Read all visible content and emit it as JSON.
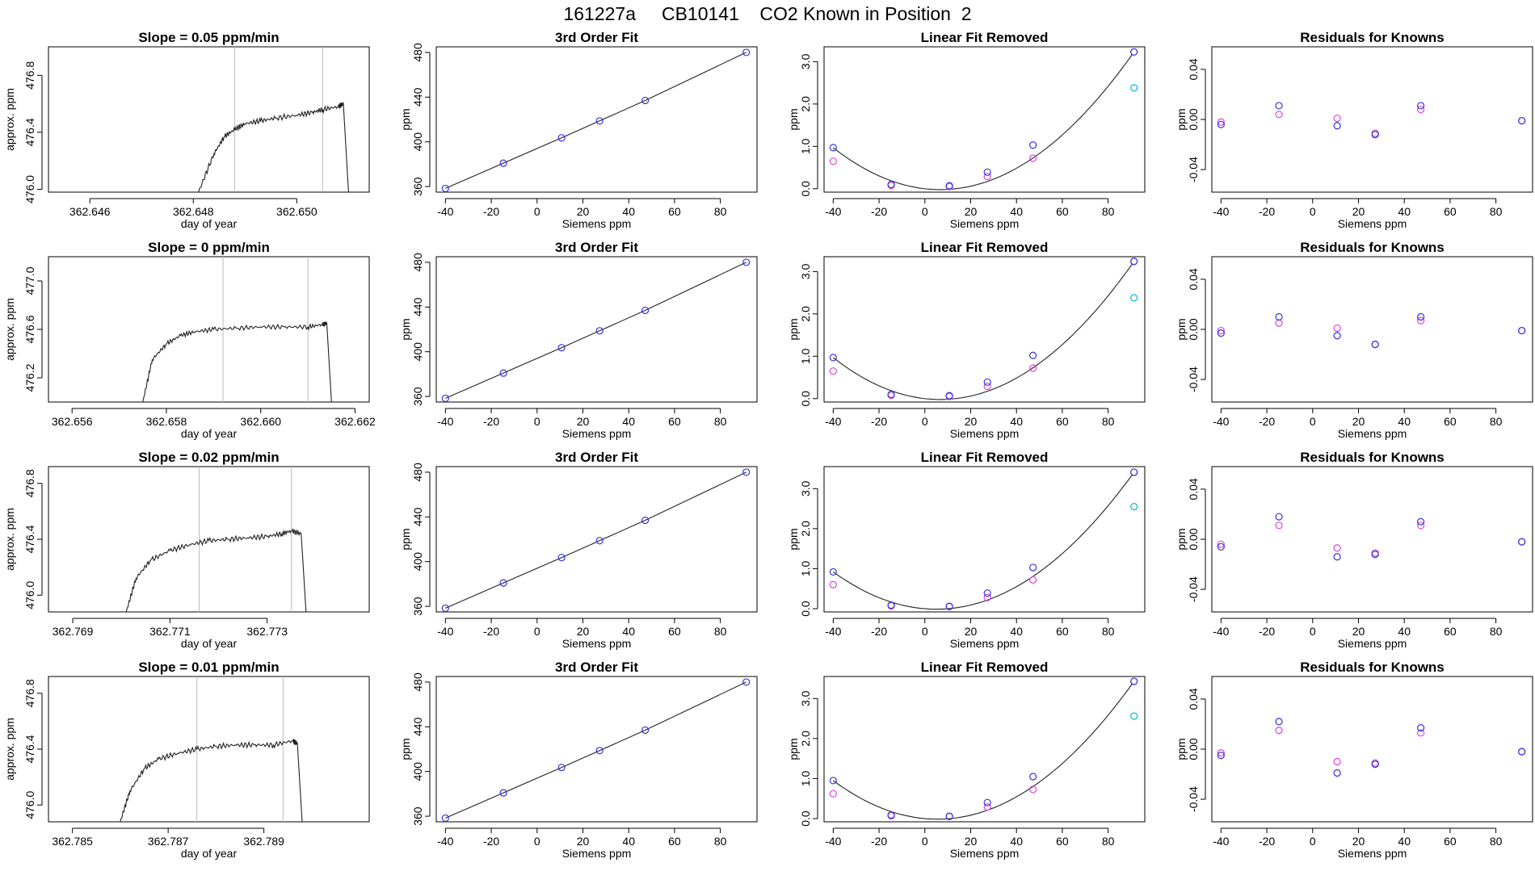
{
  "page": {
    "title": "161227a     CB10141    CO2 Known in Position  2"
  },
  "chart_data": [
    {
      "type": "line",
      "panel": "time",
      "row": 1,
      "title": "Slope =  0.05  ppm/min",
      "xlabel": "day of year",
      "ylabel": "approx. ppm",
      "xlim": [
        362.6452,
        362.6514
      ],
      "ylim": [
        475.98,
        477.0
      ],
      "xticks": [
        362.646,
        362.648,
        362.65
      ],
      "xtick_labels": [
        "362.646",
        "362.648",
        "362.650"
      ],
      "yticks": [
        476.0,
        476.4,
        476.8
      ],
      "ytick_labels": [
        "476.0",
        "476.4",
        "476.8"
      ],
      "vlines": [
        362.6488,
        362.6505
      ],
      "x": [
        362.6481,
        362.6484,
        362.6486,
        362.6488,
        362.649,
        362.6493,
        362.6496,
        362.65,
        362.6503,
        362.6505,
        362.6508,
        362.6509,
        362.651
      ],
      "y": [
        475.98,
        476.25,
        476.37,
        476.42,
        476.46,
        476.48,
        476.5,
        476.52,
        476.54,
        476.56,
        476.58,
        476.6,
        475.98
      ]
    },
    {
      "type": "line",
      "panel": "fit",
      "row": 1,
      "title": "3rd Order Fit",
      "xlabel": "Siemens ppm",
      "ylabel": "ppm",
      "xlim": [
        -44,
        96
      ],
      "ylim": [
        355,
        485
      ],
      "xticks": [
        -40,
        -20,
        0,
        20,
        40,
        60,
        80
      ],
      "xtick_labels": [
        "-40",
        "-20",
        "0",
        "20",
        "40",
        "60",
        "80"
      ],
      "yticks": [
        360,
        400,
        440,
        480
      ],
      "ytick_labels": [
        "360",
        "400",
        "440",
        "480"
      ],
      "x": [
        -40,
        -14.7,
        10.7,
        27.3,
        47.2,
        91.3
      ],
      "y": [
        358.3,
        380.9,
        403.6,
        418.7,
        437.0,
        480.0
      ]
    },
    {
      "type": "line",
      "panel": "linear",
      "row": 1,
      "title": "Linear Fit Removed",
      "xlabel": "Siemens ppm",
      "ylabel": "ppm",
      "xlim": [
        -44,
        96
      ],
      "ylim": [
        -0.08,
        3.35
      ],
      "xticks": [
        -40,
        -20,
        0,
        20,
        40,
        60,
        80
      ],
      "xtick_labels": [
        "-40",
        "-20",
        "0",
        "20",
        "40",
        "60",
        "80"
      ],
      "yticks": [
        0,
        1,
        2,
        3
      ],
      "ytick_labels": [
        "0.0",
        "1.0",
        "2.0",
        "3.0"
      ],
      "x": [
        -40,
        -14.7,
        10.7,
        27.3,
        47.2,
        91.3
      ],
      "y_blue": [
        0.97,
        0.1,
        0.07,
        0.39,
        1.03,
        3.23
      ],
      "y_magenta": [
        0.65,
        0.08,
        0.05,
        0.29,
        0.72,
        3.23
      ],
      "cyan_point": [
        91.3,
        2.38
      ]
    },
    {
      "type": "scatter",
      "panel": "resid",
      "row": 1,
      "title": "Residuals for Knowns",
      "xlabel": "Siemens ppm",
      "ylabel": "ppm",
      "xlim": [
        -44,
        96
      ],
      "ylim": [
        -0.058,
        0.058
      ],
      "xticks": [
        -40,
        -20,
        0,
        20,
        40,
        60,
        80
      ],
      "xtick_labels": [
        "-40",
        "-20",
        "0",
        "20",
        "40",
        "60",
        "80"
      ],
      "yticks": [
        -0.04,
        0,
        0.04
      ],
      "ytick_labels": [
        "-0.04",
        "0.00",
        "0.04"
      ],
      "x": [
        -40,
        -14.7,
        10.7,
        27.3,
        47.2,
        91.3
      ],
      "y_blue": [
        -0.004,
        0.011,
        -0.005,
        -0.012,
        0.011,
        -0.001
      ],
      "y_magenta": [
        -0.002,
        0.004,
        0.001,
        -0.011,
        0.008,
        -0.001
      ]
    },
    {
      "type": "line",
      "panel": "time",
      "row": 2,
      "title": "Slope =  0  ppm/min",
      "xlabel": "day of year",
      "ylabel": "approx. ppm",
      "xlim": [
        362.6555,
        362.6623
      ],
      "ylim": [
        476.0,
        477.2
      ],
      "xticks": [
        362.656,
        362.658,
        362.66,
        362.662
      ],
      "xtick_labels": [
        "362.656",
        "362.658",
        "362.660",
        "362.662"
      ],
      "yticks": [
        476.2,
        476.6,
        477.0
      ],
      "ytick_labels": [
        "476.2",
        "476.6",
        "477.0"
      ],
      "vlines": [
        362.6592,
        362.661
      ],
      "x": [
        362.6575,
        362.6577,
        362.658,
        362.6583,
        362.6586,
        362.659,
        362.6595,
        362.66,
        362.6605,
        362.661,
        362.6613,
        362.6614,
        362.6615
      ],
      "y": [
        476.0,
        476.35,
        476.48,
        476.55,
        476.58,
        476.6,
        476.61,
        476.62,
        476.62,
        476.62,
        476.64,
        476.65,
        476.0
      ]
    },
    {
      "type": "line",
      "panel": "fit",
      "row": 2,
      "title": "3rd Order Fit",
      "xlabel": "Siemens ppm",
      "ylabel": "ppm",
      "xlim": [
        -44,
        96
      ],
      "ylim": [
        355,
        485
      ],
      "xticks": [
        -40,
        -20,
        0,
        20,
        40,
        60,
        80
      ],
      "xtick_labels": [
        "-40",
        "-20",
        "0",
        "20",
        "40",
        "60",
        "80"
      ],
      "yticks": [
        360,
        400,
        440,
        480
      ],
      "ytick_labels": [
        "360",
        "400",
        "440",
        "480"
      ],
      "x": [
        -40,
        -14.7,
        10.7,
        27.3,
        47.2,
        91.3
      ],
      "y": [
        358.3,
        380.9,
        403.6,
        418.7,
        437.0,
        480.0
      ]
    },
    {
      "type": "line",
      "panel": "linear",
      "row": 2,
      "title": "Linear Fit Removed",
      "xlabel": "Siemens ppm",
      "ylabel": "ppm",
      "xlim": [
        -44,
        96
      ],
      "ylim": [
        -0.08,
        3.35
      ],
      "xticks": [
        -40,
        -20,
        0,
        20,
        40,
        60,
        80
      ],
      "xtick_labels": [
        "-40",
        "-20",
        "0",
        "20",
        "40",
        "60",
        "80"
      ],
      "yticks": [
        0,
        1,
        2,
        3
      ],
      "ytick_labels": [
        "0.0",
        "1.0",
        "2.0",
        "3.0"
      ],
      "x": [
        -40,
        -14.7,
        10.7,
        27.3,
        47.2,
        91.3
      ],
      "y_blue": [
        0.97,
        0.1,
        0.07,
        0.39,
        1.02,
        3.24
      ],
      "y_magenta": [
        0.65,
        0.08,
        0.05,
        0.29,
        0.72,
        3.24
      ],
      "cyan_point": [
        91.3,
        2.38
      ]
    },
    {
      "type": "scatter",
      "panel": "resid",
      "row": 2,
      "title": "Residuals for Knowns",
      "xlabel": "Siemens ppm",
      "ylabel": "ppm",
      "xlim": [
        -44,
        96
      ],
      "ylim": [
        -0.058,
        0.058
      ],
      "xticks": [
        -40,
        -20,
        0,
        20,
        40,
        60,
        80
      ],
      "xtick_labels": [
        "-40",
        "-20",
        "0",
        "20",
        "40",
        "60",
        "80"
      ],
      "yticks": [
        -0.04,
        0,
        0.04
      ],
      "ytick_labels": [
        "-0.04",
        "0.00",
        "0.04"
      ],
      "x": [
        -40,
        -14.7,
        10.7,
        27.3,
        47.2,
        91.3
      ],
      "y_blue": [
        -0.003,
        0.01,
        -0.005,
        -0.012,
        0.01,
        -0.001
      ],
      "y_magenta": [
        -0.001,
        0.005,
        0.001,
        -0.012,
        0.007,
        -0.001
      ]
    },
    {
      "type": "line",
      "panel": "time",
      "row": 3,
      "title": "Slope =  0.02  ppm/min",
      "xlabel": "day of year",
      "ylabel": "approx. ppm",
      "xlim": [
        362.7685,
        362.7751
      ],
      "ylim": [
        475.88,
        476.92
      ],
      "xticks": [
        362.769,
        362.771,
        362.773
      ],
      "xtick_labels": [
        "362.769",
        "362.771",
        "362.773"
      ],
      "yticks": [
        476.0,
        476.4,
        476.8
      ],
      "ytick_labels": [
        "476.0",
        "476.4",
        "476.8"
      ],
      "vlines": [
        362.7716,
        362.7735
      ],
      "x": [
        362.7701,
        362.7703,
        362.7706,
        362.771,
        362.7714,
        362.7718,
        362.7722,
        362.7726,
        362.773,
        362.7733,
        362.7735,
        362.7737,
        362.7738
      ],
      "y": [
        475.88,
        476.12,
        476.25,
        476.32,
        476.36,
        476.39,
        476.4,
        476.41,
        476.42,
        476.44,
        476.46,
        476.44,
        475.88
      ]
    },
    {
      "type": "line",
      "panel": "fit",
      "row": 3,
      "title": "3rd Order Fit",
      "xlabel": "Siemens ppm",
      "ylabel": "ppm",
      "xlim": [
        -44,
        96
      ],
      "ylim": [
        355,
        485
      ],
      "xticks": [
        -40,
        -20,
        0,
        20,
        40,
        60,
        80
      ],
      "xtick_labels": [
        "-40",
        "-20",
        "0",
        "20",
        "40",
        "60",
        "80"
      ],
      "yticks": [
        360,
        400,
        440,
        480
      ],
      "ytick_labels": [
        "360",
        "400",
        "440",
        "480"
      ],
      "x": [
        -40,
        -14.7,
        10.7,
        27.3,
        47.2,
        91.3
      ],
      "y": [
        358.3,
        380.9,
        403.6,
        418.7,
        437.0,
        480.0
      ]
    },
    {
      "type": "line",
      "panel": "linear",
      "row": 3,
      "title": "Linear Fit Removed",
      "xlabel": "Siemens ppm",
      "ylabel": "ppm",
      "xlim": [
        -44,
        96
      ],
      "ylim": [
        -0.08,
        3.55
      ],
      "xticks": [
        -40,
        -20,
        0,
        20,
        40,
        60,
        80
      ],
      "xtick_labels": [
        "-40",
        "-20",
        "0",
        "20",
        "40",
        "60",
        "80"
      ],
      "yticks": [
        0,
        1,
        2,
        3
      ],
      "ytick_labels": [
        "0.0",
        "1.0",
        "2.0",
        "3.0"
      ],
      "x": [
        -40,
        -14.7,
        10.7,
        27.3,
        47.2,
        91.3
      ],
      "y_blue": [
        0.92,
        0.09,
        0.06,
        0.39,
        1.03,
        3.41
      ],
      "y_magenta": [
        0.6,
        0.07,
        0.05,
        0.28,
        0.72,
        3.41
      ],
      "cyan_point": [
        91.3,
        2.55
      ]
    },
    {
      "type": "scatter",
      "panel": "resid",
      "row": 3,
      "title": "Residuals for Knowns",
      "xlabel": "Siemens ppm",
      "ylabel": "ppm",
      "xlim": [
        -44,
        96
      ],
      "ylim": [
        -0.058,
        0.058
      ],
      "xticks": [
        -40,
        -20,
        0,
        20,
        40,
        60,
        80
      ],
      "xtick_labels": [
        "-40",
        "-20",
        "0",
        "20",
        "40",
        "60",
        "80"
      ],
      "yticks": [
        -0.04,
        0,
        0.04
      ],
      "ytick_labels": [
        "-0.04",
        "0.00",
        "0.04"
      ],
      "x": [
        -40,
        -14.7,
        10.7,
        27.3,
        47.2,
        91.3
      ],
      "y_blue": [
        -0.006,
        0.018,
        -0.014,
        -0.012,
        0.014,
        -0.002
      ],
      "y_magenta": [
        -0.004,
        0.011,
        -0.007,
        -0.011,
        0.011,
        -0.002
      ]
    },
    {
      "type": "line",
      "panel": "time",
      "row": 4,
      "title": "Slope =  0.01  ppm/min",
      "xlabel": "day of year",
      "ylabel": "approx. ppm",
      "xlim": [
        362.7845,
        362.7912
      ],
      "ylim": [
        475.88,
        476.92
      ],
      "xticks": [
        362.785,
        362.787,
        362.789
      ],
      "xtick_labels": [
        "362.785",
        "362.787",
        "362.789"
      ],
      "yticks": [
        476.0,
        476.4,
        476.8
      ],
      "ytick_labels": [
        "476.0",
        "476.4",
        "476.8"
      ],
      "vlines": [
        362.7876,
        362.7894
      ],
      "x": [
        362.786,
        362.7862,
        362.7865,
        362.7868,
        362.7872,
        362.7876,
        362.788,
        362.7884,
        362.7888,
        362.7892,
        362.7896,
        362.7897,
        362.7898
      ],
      "y": [
        475.88,
        476.1,
        476.26,
        476.33,
        476.37,
        476.4,
        476.42,
        476.43,
        476.43,
        476.43,
        476.46,
        476.44,
        475.88
      ]
    },
    {
      "type": "line",
      "panel": "fit",
      "row": 4,
      "title": "3rd Order Fit",
      "xlabel": "Siemens ppm",
      "ylabel": "ppm",
      "xlim": [
        -44,
        96
      ],
      "ylim": [
        355,
        485
      ],
      "xticks": [
        -40,
        -20,
        0,
        20,
        40,
        60,
        80
      ],
      "xtick_labels": [
        "-40",
        "-20",
        "0",
        "20",
        "40",
        "60",
        "80"
      ],
      "yticks": [
        360,
        400,
        440,
        480
      ],
      "ytick_labels": [
        "360",
        "400",
        "440",
        "480"
      ],
      "x": [
        -40,
        -14.7,
        10.7,
        27.3,
        47.2,
        91.3
      ],
      "y": [
        358.3,
        380.9,
        403.6,
        418.7,
        437.0,
        480.0
      ]
    },
    {
      "type": "line",
      "panel": "linear",
      "row": 4,
      "title": "Linear Fit Removed",
      "xlabel": "Siemens ppm",
      "ylabel": "ppm",
      "xlim": [
        -44,
        96
      ],
      "ylim": [
        -0.08,
        3.55
      ],
      "xticks": [
        -40,
        -20,
        0,
        20,
        40,
        60,
        80
      ],
      "xtick_labels": [
        "-40",
        "-20",
        "0",
        "20",
        "40",
        "60",
        "80"
      ],
      "yticks": [
        0,
        1,
        2,
        3
      ],
      "ytick_labels": [
        "0.0",
        "1.0",
        "2.0",
        "3.0"
      ],
      "x": [
        -40,
        -14.7,
        10.7,
        27.3,
        47.2,
        91.3
      ],
      "y_blue": [
        0.95,
        0.09,
        0.06,
        0.4,
        1.05,
        3.43
      ],
      "y_magenta": [
        0.62,
        0.07,
        0.05,
        0.29,
        0.73,
        3.43
      ],
      "cyan_point": [
        91.3,
        2.56
      ]
    },
    {
      "type": "scatter",
      "panel": "resid",
      "row": 4,
      "title": "Residuals for Knowns",
      "xlabel": "Siemens ppm",
      "ylabel": "ppm",
      "xlim": [
        -44,
        96
      ],
      "ylim": [
        -0.058,
        0.058
      ],
      "xticks": [
        -40,
        -20,
        0,
        20,
        40,
        60,
        80
      ],
      "xtick_labels": [
        "-40",
        "-20",
        "0",
        "20",
        "40",
        "60",
        "80"
      ],
      "yticks": [
        -0.04,
        0,
        0.04
      ],
      "ytick_labels": [
        "-0.04",
        "0.00",
        "0.04"
      ],
      "x": [
        -40,
        -14.7,
        10.7,
        27.3,
        47.2,
        91.3
      ],
      "y_blue": [
        -0.005,
        0.022,
        -0.019,
        -0.012,
        0.017,
        -0.002
      ],
      "y_magenta": [
        -0.003,
        0.015,
        -0.01,
        -0.011,
        0.013,
        -0.002
      ]
    }
  ],
  "colors": {
    "blue": "#3333dd",
    "magenta": "#dd44dd",
    "cyan": "#00b7d8",
    "line": "#222222",
    "vline": "#bbbbbb",
    "axis": "#000000"
  }
}
